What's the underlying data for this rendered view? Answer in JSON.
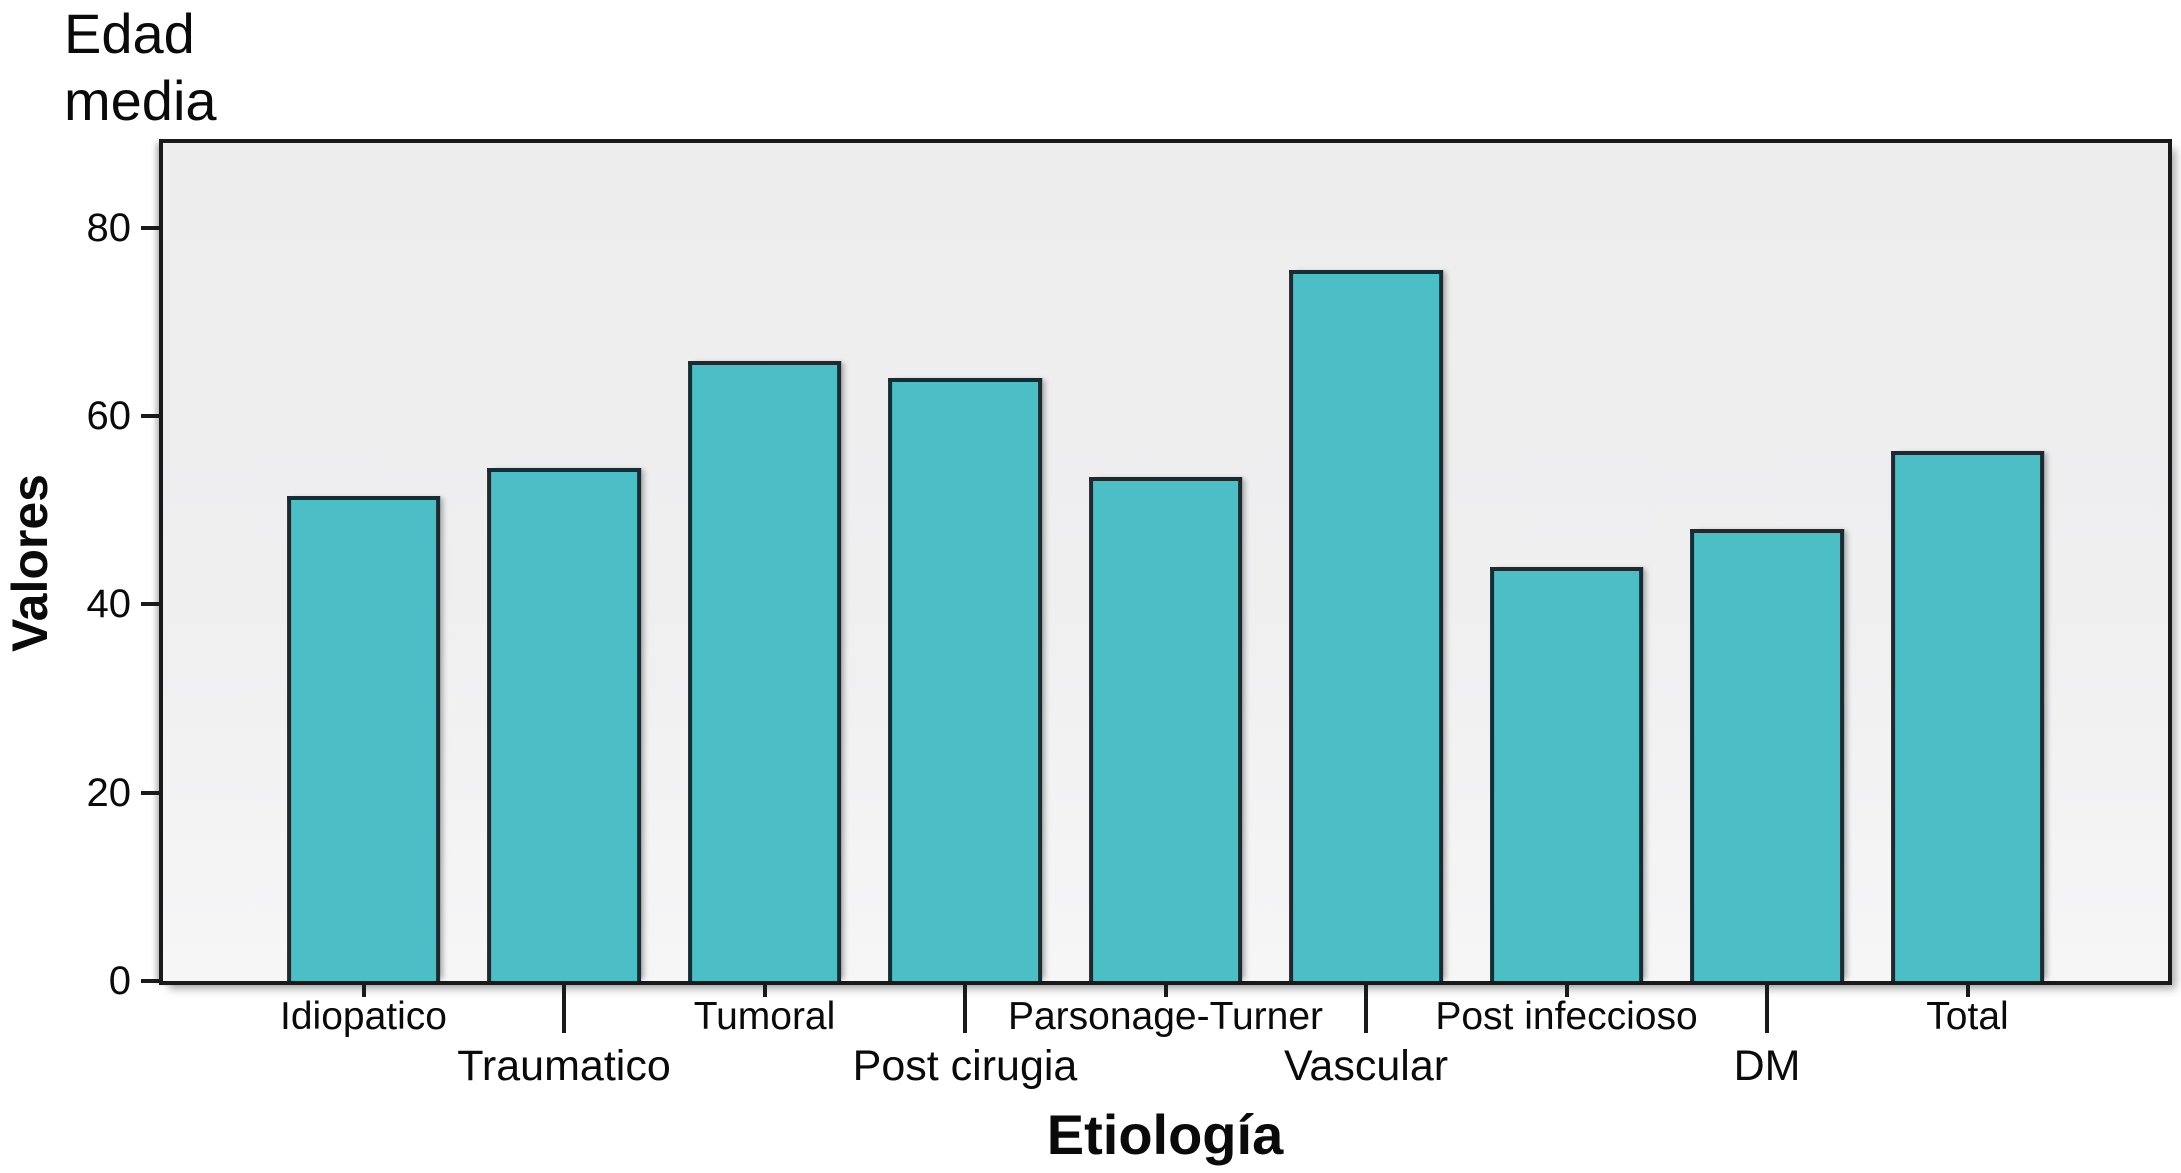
{
  "figure": {
    "title": "Edad\nmedia"
  },
  "chart_data": {
    "type": "bar",
    "title": "Edad media",
    "xlabel": "Etiología",
    "ylabel": "Valores",
    "categories": [
      "Idiopatico",
      "Traumatico",
      "Tumoral",
      "Post cirugia",
      "Parsonage-Turner",
      "Vascular",
      "Post infeccioso",
      "DM",
      "Total"
    ],
    "values": [
      51.5,
      54.5,
      65.8,
      64,
      53.5,
      75.5,
      44,
      48,
      56.3
    ],
    "label_rows": [
      1,
      2,
      1,
      2,
      1,
      2,
      1,
      2,
      1
    ],
    "yticks": [
      0,
      20,
      40,
      60,
      80
    ],
    "ylim": [
      0,
      89
    ],
    "grid": false,
    "legend": "none",
    "colors": {
      "bar_fill": "#4BBFC5",
      "bar_border": "#1B2B31",
      "axis": "#1A1A1A",
      "plot_bg_top": "#EDEDEE",
      "plot_bg_bottom": "#F6F6F7"
    }
  }
}
